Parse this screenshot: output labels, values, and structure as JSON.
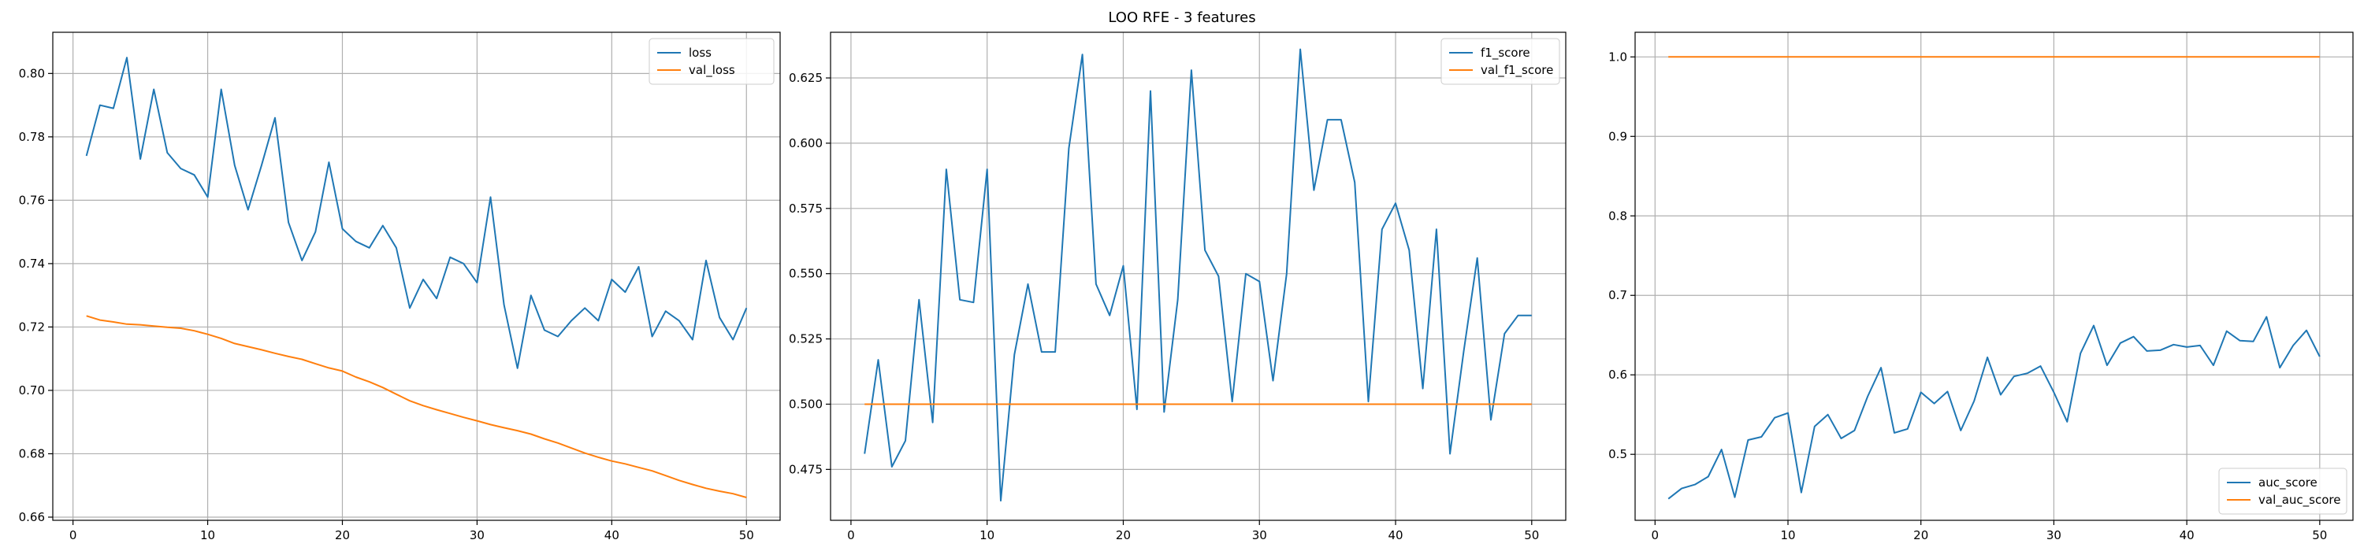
{
  "figure": {
    "title": "LOO RFE - 3 features"
  },
  "chart_data": [
    {
      "type": "line",
      "title": "",
      "xlabel": "",
      "ylabel": "",
      "xlim": [
        -1.5,
        52.5
      ],
      "ylim": [
        0.659,
        0.813
      ],
      "xticks": [
        0,
        10,
        20,
        30,
        40,
        50
      ],
      "yticks": [
        0.66,
        0.68,
        0.7,
        0.72,
        0.74,
        0.76,
        0.78,
        0.8
      ],
      "ytick_labels": [
        "0.66",
        "0.68",
        "0.70",
        "0.72",
        "0.74",
        "0.76",
        "0.78",
        "0.80"
      ],
      "grid": true,
      "legend_position": "top-right",
      "x": [
        1,
        2,
        3,
        4,
        5,
        6,
        7,
        8,
        9,
        10,
        11,
        12,
        13,
        14,
        15,
        16,
        17,
        18,
        19,
        20,
        21,
        22,
        23,
        24,
        25,
        26,
        27,
        28,
        29,
        30,
        31,
        32,
        33,
        34,
        35,
        36,
        37,
        38,
        39,
        40,
        41,
        42,
        43,
        44,
        45,
        46,
        47,
        48,
        49,
        50
      ],
      "series": [
        {
          "name": "loss",
          "color": "#1f77b4",
          "values": [
            0.774,
            0.79,
            0.789,
            0.805,
            0.773,
            0.795,
            0.775,
            0.77,
            0.768,
            0.761,
            0.795,
            0.771,
            0.757,
            0.771,
            0.786,
            0.753,
            0.741,
            0.75,
            0.772,
            0.751,
            0.747,
            0.745,
            0.752,
            0.745,
            0.726,
            0.735,
            0.729,
            0.742,
            0.74,
            0.734,
            0.761,
            0.727,
            0.707,
            0.73,
            0.719,
            0.717,
            0.722,
            0.726,
            0.722,
            0.735,
            0.731,
            0.739,
            0.717,
            0.725,
            0.722,
            0.716,
            0.741,
            0.723,
            0.716,
            0.726
          ]
        },
        {
          "name": "val_loss",
          "color": "#ff7f0e",
          "values": [
            0.7235,
            0.7222,
            0.7216,
            0.7209,
            0.7207,
            0.7203,
            0.7199,
            0.7196,
            0.7188,
            0.7177,
            0.7164,
            0.7148,
            0.7138,
            0.7128,
            0.7117,
            0.7107,
            0.7098,
            0.7084,
            0.7071,
            0.7061,
            0.7042,
            0.7027,
            0.7009,
            0.6988,
            0.6967,
            0.6952,
            0.6939,
            0.6927,
            0.6915,
            0.6904,
            0.6892,
            0.6882,
            0.6873,
            0.6862,
            0.6847,
            0.6834,
            0.6818,
            0.6802,
            0.6789,
            0.6777,
            0.6768,
            0.6757,
            0.6746,
            0.6731,
            0.6716,
            0.6703,
            0.6691,
            0.6682,
            0.6674,
            0.6662
          ]
        }
      ]
    },
    {
      "type": "line",
      "title": "",
      "xlabel": "",
      "ylabel": "",
      "xlim": [
        -1.5,
        52.5
      ],
      "ylim": [
        0.4555,
        0.6425
      ],
      "xticks": [
        0,
        10,
        20,
        30,
        40,
        50
      ],
      "yticks": [
        0.475,
        0.5,
        0.525,
        0.55,
        0.575,
        0.6,
        0.625
      ],
      "ytick_labels": [
        "0.475",
        "0.500",
        "0.525",
        "0.550",
        "0.575",
        "0.600",
        "0.625"
      ],
      "grid": true,
      "legend_position": "top-right",
      "x": [
        1,
        2,
        3,
        4,
        5,
        6,
        7,
        8,
        9,
        10,
        11,
        12,
        13,
        14,
        15,
        16,
        17,
        18,
        19,
        20,
        21,
        22,
        23,
        24,
        25,
        26,
        27,
        28,
        29,
        30,
        31,
        32,
        33,
        34,
        35,
        36,
        37,
        38,
        39,
        40,
        41,
        42,
        43,
        44,
        45,
        46,
        47,
        48,
        49,
        50
      ],
      "series": [
        {
          "name": "f1_score",
          "color": "#1f77b4",
          "values": [
            0.481,
            0.517,
            0.476,
            0.486,
            0.54,
            0.493,
            0.59,
            0.54,
            0.539,
            0.59,
            0.463,
            0.519,
            0.546,
            0.52,
            0.52,
            0.598,
            0.634,
            0.546,
            0.534,
            0.553,
            0.498,
            0.62,
            0.497,
            0.54,
            0.628,
            0.559,
            0.549,
            0.501,
            0.55,
            0.547,
            0.509,
            0.55,
            0.636,
            0.582,
            0.609,
            0.609,
            0.585,
            0.501,
            0.567,
            0.577,
            0.559,
            0.506,
            0.567,
            0.481,
            0.52,
            0.556,
            0.494,
            0.527,
            0.534,
            0.534
          ]
        },
        {
          "name": "val_f1_score",
          "color": "#ff7f0e",
          "values": [
            0.5,
            0.5,
            0.5,
            0.5,
            0.5,
            0.5,
            0.5,
            0.5,
            0.5,
            0.5,
            0.5,
            0.5,
            0.5,
            0.5,
            0.5,
            0.5,
            0.5,
            0.5,
            0.5,
            0.5,
            0.5,
            0.5,
            0.5,
            0.5,
            0.5,
            0.5,
            0.5,
            0.5,
            0.5,
            0.5,
            0.5,
            0.5,
            0.5,
            0.5,
            0.5,
            0.5,
            0.5,
            0.5,
            0.5,
            0.5,
            0.5,
            0.5,
            0.5,
            0.5,
            0.5,
            0.5,
            0.5,
            0.5,
            0.5,
            0.5
          ]
        }
      ]
    },
    {
      "type": "line",
      "title": "",
      "xlabel": "",
      "ylabel": "",
      "xlim": [
        -1.5,
        52.5
      ],
      "ylim": [
        0.417,
        1.031
      ],
      "xticks": [
        0,
        10,
        20,
        30,
        40,
        50
      ],
      "yticks": [
        0.5,
        0.6,
        0.7,
        0.8,
        0.9,
        1.0
      ],
      "ytick_labels": [
        "0.5",
        "0.6",
        "0.7",
        "0.8",
        "0.9",
        "1.0"
      ],
      "grid": true,
      "legend_position": "bottom-right",
      "x": [
        1,
        2,
        3,
        4,
        5,
        6,
        7,
        8,
        9,
        10,
        11,
        12,
        13,
        14,
        15,
        16,
        17,
        18,
        19,
        20,
        21,
        22,
        23,
        24,
        25,
        26,
        27,
        28,
        29,
        30,
        31,
        32,
        33,
        34,
        35,
        36,
        37,
        38,
        39,
        40,
        41,
        42,
        43,
        44,
        45,
        46,
        47,
        48,
        49,
        50
      ],
      "series": [
        {
          "name": "auc_score",
          "color": "#1f77b4",
          "values": [
            0.444,
            0.457,
            0.462,
            0.472,
            0.506,
            0.446,
            0.518,
            0.522,
            0.546,
            0.552,
            0.452,
            0.535,
            0.55,
            0.52,
            0.53,
            0.573,
            0.609,
            0.527,
            0.532,
            0.578,
            0.564,
            0.579,
            0.53,
            0.567,
            0.622,
            0.575,
            0.598,
            0.602,
            0.611,
            0.578,
            0.541,
            0.627,
            0.662,
            0.612,
            0.64,
            0.648,
            0.63,
            0.631,
            0.638,
            0.635,
            0.637,
            0.612,
            0.655,
            0.643,
            0.642,
            0.673,
            0.609,
            0.637,
            0.656,
            0.623
          ]
        },
        {
          "name": "val_auc_score",
          "color": "#ff7f0e",
          "values": [
            1.0,
            1.0,
            1.0,
            1.0,
            1.0,
            1.0,
            1.0,
            1.0,
            1.0,
            1.0,
            1.0,
            1.0,
            1.0,
            1.0,
            1.0,
            1.0,
            1.0,
            1.0,
            1.0,
            1.0,
            1.0,
            1.0,
            1.0,
            1.0,
            1.0,
            1.0,
            1.0,
            1.0,
            1.0,
            1.0,
            1.0,
            1.0,
            1.0,
            1.0,
            1.0,
            1.0,
            1.0,
            1.0,
            1.0,
            1.0,
            1.0,
            1.0,
            1.0,
            1.0,
            1.0,
            1.0,
            1.0,
            1.0,
            1.0,
            1.0
          ]
        }
      ]
    }
  ]
}
